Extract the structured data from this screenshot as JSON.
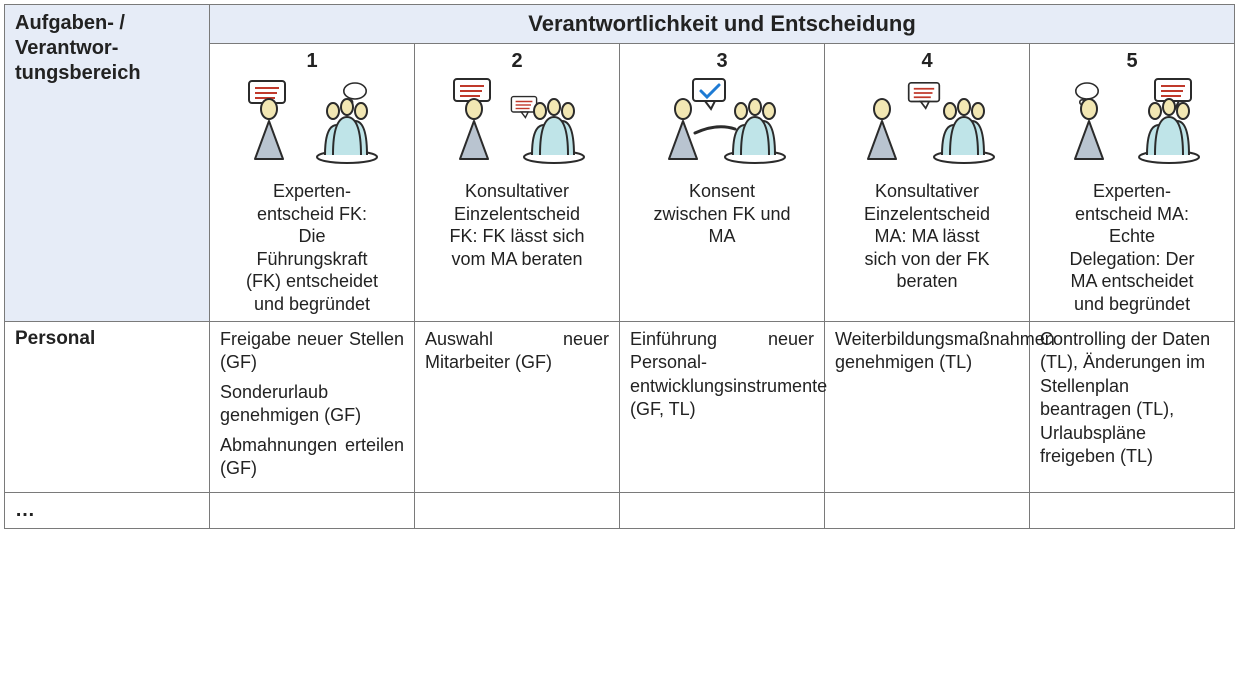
{
  "header": {
    "spanning_title": "Verantwortlichkeit und Entscheidung",
    "row_header": "Aufgaben- /\nVerantwor-\ntungsbereich"
  },
  "columns": [
    {
      "num": "1",
      "desc": "Experten-\nentscheid FK:\nDie\nFührungskraft\n(FK) entscheidet\nund begründet"
    },
    {
      "num": "2",
      "desc": "Konsultativer\nEinzelentscheid\nFK: FK lässt sich\nvom MA beraten"
    },
    {
      "num": "3",
      "desc": "Konsent\nzwischen FK und\nMA"
    },
    {
      "num": "4",
      "desc": "Konsultativer\nEinzelentscheid\nMA: MA lässt\nsich von der FK\nberaten"
    },
    {
      "num": "5",
      "desc": "Experten-\nentscheid MA:\nEchte\nDelegation: Der\nMA entscheidet\nund begründet"
    }
  ],
  "rows": [
    {
      "label": "Personal",
      "cells": [
        [
          "Freigabe neuer Stellen (GF)",
          "Sonderurlaub genehmigen (GF)",
          "Abmahnungen erteilen (GF)"
        ],
        [
          "Auswahl neuer Mitarbeiter (GF)"
        ],
        [
          "Einführung neuer Personal-entwicklungsinstrumente (GF, TL)"
        ],
        [
          "Weiterbildungsmaßnahmen genehmigen (TL)"
        ],
        [
          "Controlling der Daten (TL), Änderungen im Stellenplan beantragen (TL), Urlaubspläne freigeben (TL)"
        ]
      ]
    }
  ],
  "ellipsis": "…",
  "style": {
    "header_bg": "#e6ecf7",
    "border_color": "#7a7a7a",
    "font": "Segoe UI",
    "leader_fill": "#b9c4d0",
    "group_fill": "#bfe4e8",
    "head_fill": "#f2e7b3",
    "bubble_fill": "#ffffff",
    "stroke": "#2b2b2b"
  }
}
